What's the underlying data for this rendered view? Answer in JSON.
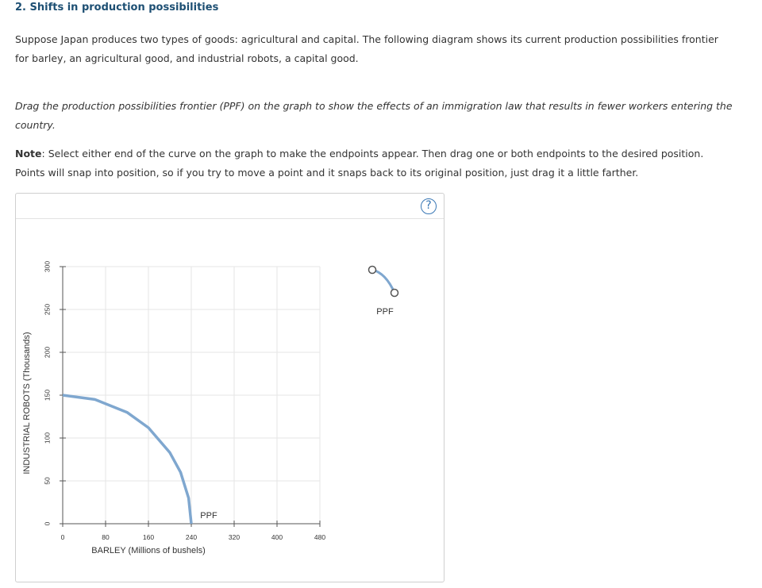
{
  "heading": "2. Shifts in production possibilities",
  "intro": "Suppose Japan produces two types of goods: agricultural and capital. The following diagram shows its current production possibilities frontier for barley, an agricultural good, and industrial robots, a capital good.",
  "instruction": "Drag the production possibilities frontier (PPF) on the graph to show the effects of an immigration law that results in fewer workers entering the country.",
  "note": {
    "label": "Note",
    "text": ": Select either end of the curve on the graph to make the endpoints appear. Then drag one or both endpoints to the desired position. Points will snap into position, so if you try to move a point and it snaps back to its original position, just drag it a little farther."
  },
  "help_label": "?",
  "chart_data": {
    "type": "line",
    "xlabel": "BARLEY (Millions of bushels)",
    "ylabel": "INDUSTRIAL ROBOTS (Thousands)",
    "xlim": [
      0,
      480
    ],
    "ylim": [
      0,
      300
    ],
    "x_ticks": [
      0,
      80,
      160,
      240,
      320,
      400,
      480
    ],
    "y_ticks": [
      0,
      50,
      100,
      150,
      200,
      250,
      300
    ],
    "grid": true,
    "series": [
      {
        "name": "PPF",
        "color": "#7fa7cf",
        "y_intercept": 150,
        "x_intercept": 240,
        "points": [
          [
            0,
            150
          ],
          [
            60,
            145
          ],
          [
            120,
            130
          ],
          [
            160,
            112
          ],
          [
            200,
            83
          ],
          [
            220,
            60
          ],
          [
            235,
            30
          ],
          [
            240,
            0
          ]
        ]
      }
    ],
    "palette": {
      "item_label": "PPF",
      "color": "#7fa7cf"
    }
  }
}
